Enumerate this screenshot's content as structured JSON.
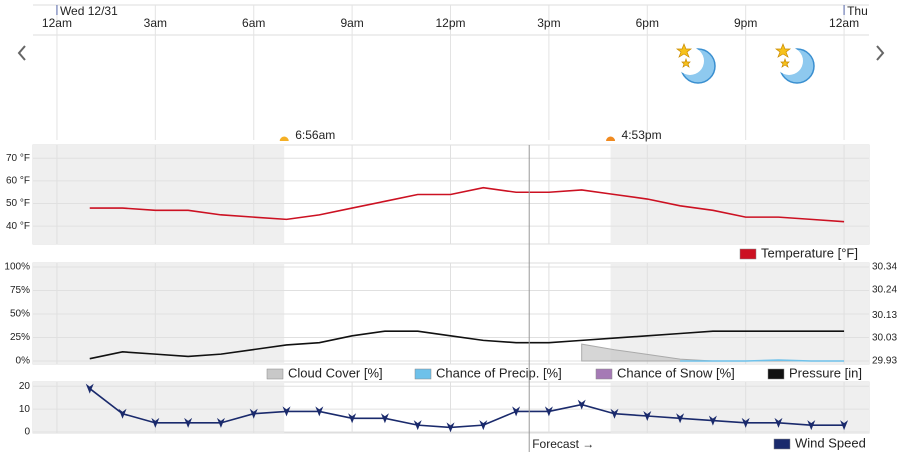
{
  "time_axis": {
    "xlim": [
      -0.73,
      24.76
    ],
    "xticks": [
      {
        "value": 0,
        "label": "12am"
      },
      {
        "value": 3,
        "label": "3am"
      },
      {
        "value": 6,
        "label": "6am"
      },
      {
        "value": 9,
        "label": "9am"
      },
      {
        "value": 12,
        "label": "12pm"
      },
      {
        "value": 15,
        "label": "3pm"
      },
      {
        "value": 18,
        "label": "6pm"
      },
      {
        "value": 21,
        "label": "9pm"
      },
      {
        "value": 24,
        "label": "12am"
      }
    ],
    "days": [
      {
        "value": 0,
        "label": "Wed 12/31"
      },
      {
        "value": 24,
        "label": "Thu"
      }
    ],
    "sunrise": {
      "value": 6.93,
      "label": "6:56am"
    },
    "sunset": {
      "value": 16.88,
      "label": "4:53pm"
    },
    "forecast": {
      "value": 14.4,
      "label": "Forecast →"
    }
  },
  "chart_data": [
    {
      "type": "line",
      "x": [
        1,
        2,
        3,
        4,
        5,
        6,
        7,
        8,
        9,
        10,
        11,
        12,
        13,
        14,
        15,
        16,
        17,
        18,
        19,
        20,
        21,
        22,
        23,
        24
      ],
      "ylim": [
        33,
        75
      ],
      "yticks": [
        {
          "value": 40,
          "label": "40 °F"
        },
        {
          "value": 50,
          "label": "50 °F"
        },
        {
          "value": 60,
          "label": "60 °F"
        },
        {
          "value": 70,
          "label": "70 °F"
        }
      ],
      "series": [
        {
          "name": "Temperature [°F]",
          "color": "#cc1122",
          "values": [
            48,
            48,
            47,
            47,
            45,
            44,
            43,
            45,
            48,
            51,
            54,
            54,
            57,
            55,
            55,
            56,
            54,
            52,
            49,
            47,
            44,
            44,
            43,
            42
          ]
        }
      ]
    },
    {
      "type": "line",
      "x": [
        1,
        2,
        3,
        4,
        5,
        6,
        7,
        8,
        9,
        10,
        11,
        12,
        13,
        14,
        15,
        16,
        17,
        18,
        19,
        20,
        21,
        22,
        23,
        24
      ],
      "ylim": [
        0,
        100
      ],
      "yticks": [
        {
          "value": 0,
          "label": "0%"
        },
        {
          "value": 25,
          "label": "25%"
        },
        {
          "value": 50,
          "label": "50%"
        },
        {
          "value": 75,
          "label": "75%"
        },
        {
          "value": 100,
          "label": "100%"
        }
      ],
      "y2lim": [
        29.93,
        30.34
      ],
      "y2ticks": [
        29.93,
        30.03,
        30.13,
        30.24,
        30.34
      ],
      "series": [
        {
          "name": "Cloud Cover [%]",
          "color": "#c8c8c8",
          "fill": true,
          "values": [
            null,
            null,
            null,
            null,
            null,
            null,
            null,
            null,
            null,
            null,
            null,
            null,
            null,
            null,
            null,
            18,
            12,
            7,
            2,
            0,
            0,
            0,
            0,
            0
          ]
        },
        {
          "name": "Chance of Precip. [%]",
          "color": "#6ec1ea",
          "values": [
            null,
            null,
            null,
            null,
            null,
            null,
            null,
            null,
            null,
            null,
            null,
            null,
            null,
            null,
            null,
            null,
            null,
            null,
            0,
            0,
            0,
            1,
            0,
            0
          ]
        },
        {
          "name": "Chance of Snow [%]",
          "color": "#a57ab5",
          "values": [
            null,
            null,
            null,
            null,
            null,
            null,
            null,
            null,
            null,
            null,
            null,
            null,
            null,
            null,
            null,
            null,
            null,
            null,
            null,
            null,
            null,
            null,
            null,
            null
          ]
        },
        {
          "name": "Pressure [in]",
          "color": "#111111",
          "axis": "y2",
          "values": [
            29.94,
            29.97,
            29.96,
            29.95,
            29.96,
            29.98,
            30.0,
            30.01,
            30.04,
            30.06,
            30.06,
            30.04,
            30.02,
            30.01,
            30.01,
            30.02,
            30.03,
            30.04,
            30.05,
            30.06,
            30.06,
            30.06,
            30.06,
            30.06
          ]
        }
      ]
    },
    {
      "type": "line",
      "x": [
        1,
        2,
        3,
        4,
        5,
        6,
        7,
        8,
        9,
        10,
        11,
        12,
        13,
        14,
        15,
        16,
        17,
        18,
        19,
        20,
        21,
        22,
        23,
        24
      ],
      "ylim": [
        0,
        21
      ],
      "yticks": [
        0,
        10,
        20
      ],
      "series": [
        {
          "name": "Wind Speed",
          "color": "#1a2a6c",
          "values": [
            19,
            8,
            4,
            4,
            4,
            8,
            9,
            9,
            6,
            6,
            3,
            2,
            3,
            9,
            9,
            12,
            8,
            7,
            6,
            5,
            4,
            4,
            3,
            3
          ]
        }
      ]
    }
  ]
}
